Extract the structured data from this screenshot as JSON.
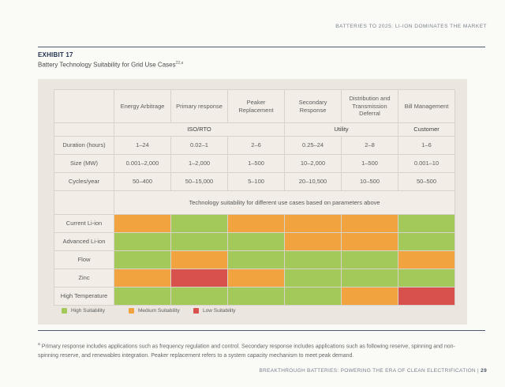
{
  "page": {
    "header": "BATTERIES TO 2025: LI-ION DOMINATES THE MARKET",
    "footer": {
      "text": "BREAKTHROUGH BATTERIES: POWERING THE ERA OF CLEAN ELECTRIFICATION",
      "separator": "|",
      "page_number": "29"
    }
  },
  "exhibit": {
    "label": "EXHIBIT 17",
    "title": "Battery Technology Suitability for Grid Use Cases",
    "title_superscript": "22,a"
  },
  "colors": {
    "high": "#a2c95a",
    "medium": "#f1a340",
    "low": "#d8514d",
    "band_gray": "#b4b1ac",
    "panel_bg": "#ebe6df"
  },
  "chart_data": {
    "type": "table",
    "title": "Battery Technology Suitability for Grid Use Cases",
    "columns": [
      "Energy Arbitrage",
      "Primary response",
      "Peaker Replacement",
      "Secondary Response",
      "Distribution and Transmission Deferral",
      "Bill Management"
    ],
    "column_groups": [
      {
        "label": "ISO/RTO",
        "span": 3
      },
      {
        "label": "Utility",
        "span": 2
      },
      {
        "label": "Customer",
        "span": 1
      }
    ],
    "parameter_rows": [
      {
        "label": "Duration (hours)",
        "values": [
          "1–24",
          "0.02–1",
          "2–6",
          "0.25–24",
          "2–8",
          "1–6"
        ]
      },
      {
        "label": "Size (MW)",
        "values": [
          "0.001–2,000",
          "1–2,000",
          "1–500",
          "10–2,000",
          "1–500",
          "0.001–10"
        ]
      },
      {
        "label": "Cycles/year",
        "values": [
          "50–400",
          "50–15,000",
          "5–100",
          "20–10,500",
          "10–500",
          "50–500"
        ]
      }
    ],
    "caption": "Technology suitability for different use cases based on parameters above",
    "technology_rows": [
      {
        "label": "Current Li-ion",
        "suitability": [
          "medium",
          "high",
          "medium",
          "medium",
          "medium",
          "high"
        ]
      },
      {
        "label": "Advanced Li-ion",
        "suitability": [
          "high",
          "high",
          "high",
          "medium",
          "medium",
          "high"
        ]
      },
      {
        "label": "Flow",
        "suitability": [
          "high",
          "medium",
          "high",
          "high",
          "high",
          "medium"
        ]
      },
      {
        "label": "Zinc",
        "suitability": [
          "medium",
          "low",
          "medium",
          "high",
          "high",
          "high"
        ]
      },
      {
        "label": "High Temperature",
        "suitability": [
          "high",
          "high",
          "high",
          "high",
          "medium",
          "low"
        ]
      }
    ],
    "legend": [
      {
        "key": "high",
        "label": "High Suitability"
      },
      {
        "key": "medium",
        "label": "Medium Suitability"
      },
      {
        "key": "low",
        "label": "Low Suitability"
      }
    ]
  },
  "footnote": {
    "marker": "a",
    "text": "Primary response includes applications such as frequency regulation and control. Secondary response includes applications such as following reserve, spinning and non-spinning reserve, and renewables integration. Peaker replacement refers to a system capacity mechanism to meet peak demand."
  }
}
